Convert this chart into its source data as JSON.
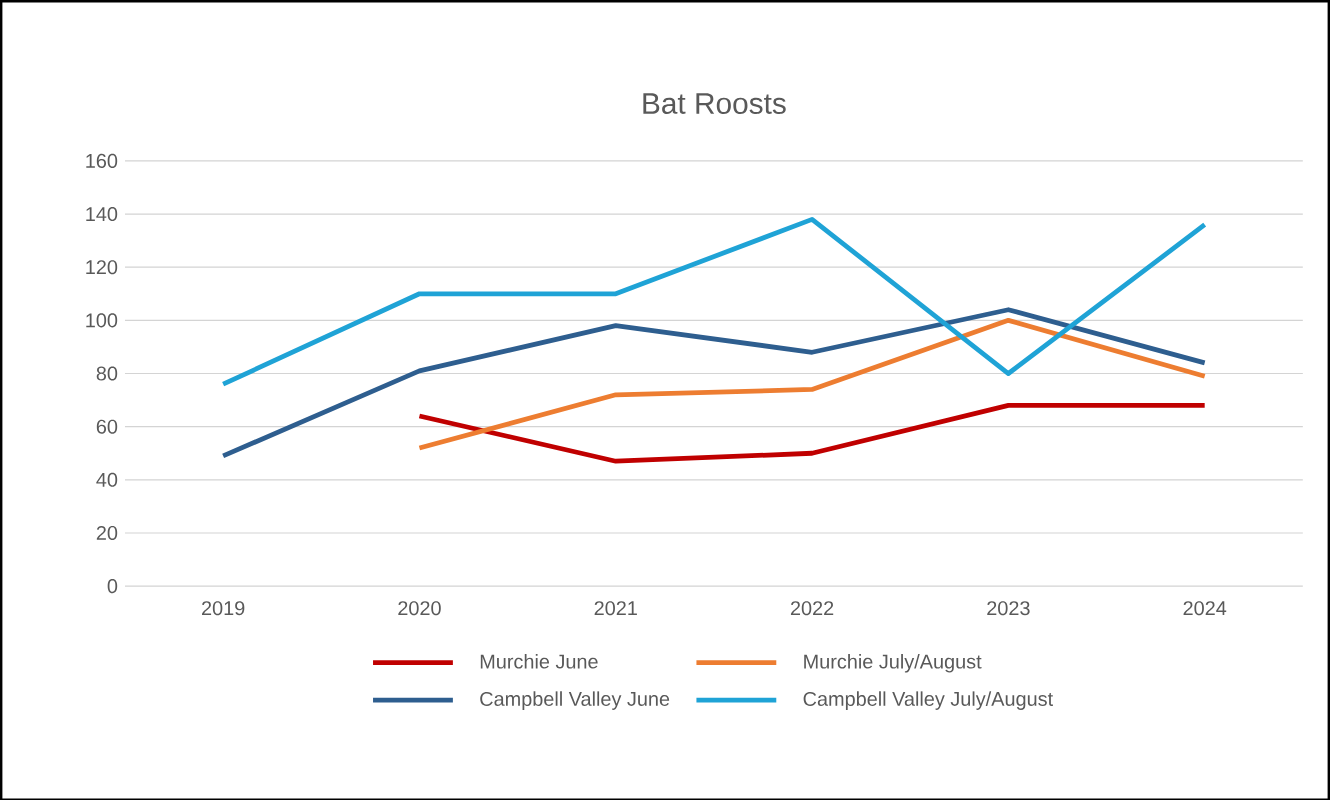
{
  "chart_data": {
    "type": "line",
    "title": "Bat Roosts",
    "categories": [
      "2019",
      "2020",
      "2021",
      "2022",
      "2023",
      "2024"
    ],
    "series": [
      {
        "name": "Murchie June",
        "color": "#c00000",
        "values": [
          null,
          64,
          47,
          50,
          68,
          68
        ]
      },
      {
        "name": "Murchie July/August",
        "color": "#ed7d31",
        "values": [
          null,
          52,
          72,
          74,
          100,
          79
        ]
      },
      {
        "name": "Campbell Valley June",
        "color": "#2e5e8f",
        "values": [
          49,
          81,
          98,
          88,
          104,
          84
        ]
      },
      {
        "name": "Campbell Valley July/August",
        "color": "#1fa3d6",
        "values": [
          76,
          110,
          110,
          138,
          80,
          136
        ]
      }
    ],
    "ylim": [
      0,
      160
    ],
    "yticks": [
      0,
      20,
      40,
      60,
      80,
      100,
      120,
      140,
      160
    ],
    "grid": "y",
    "legend": "bottom",
    "marker": "none",
    "line_style": "solid"
  }
}
